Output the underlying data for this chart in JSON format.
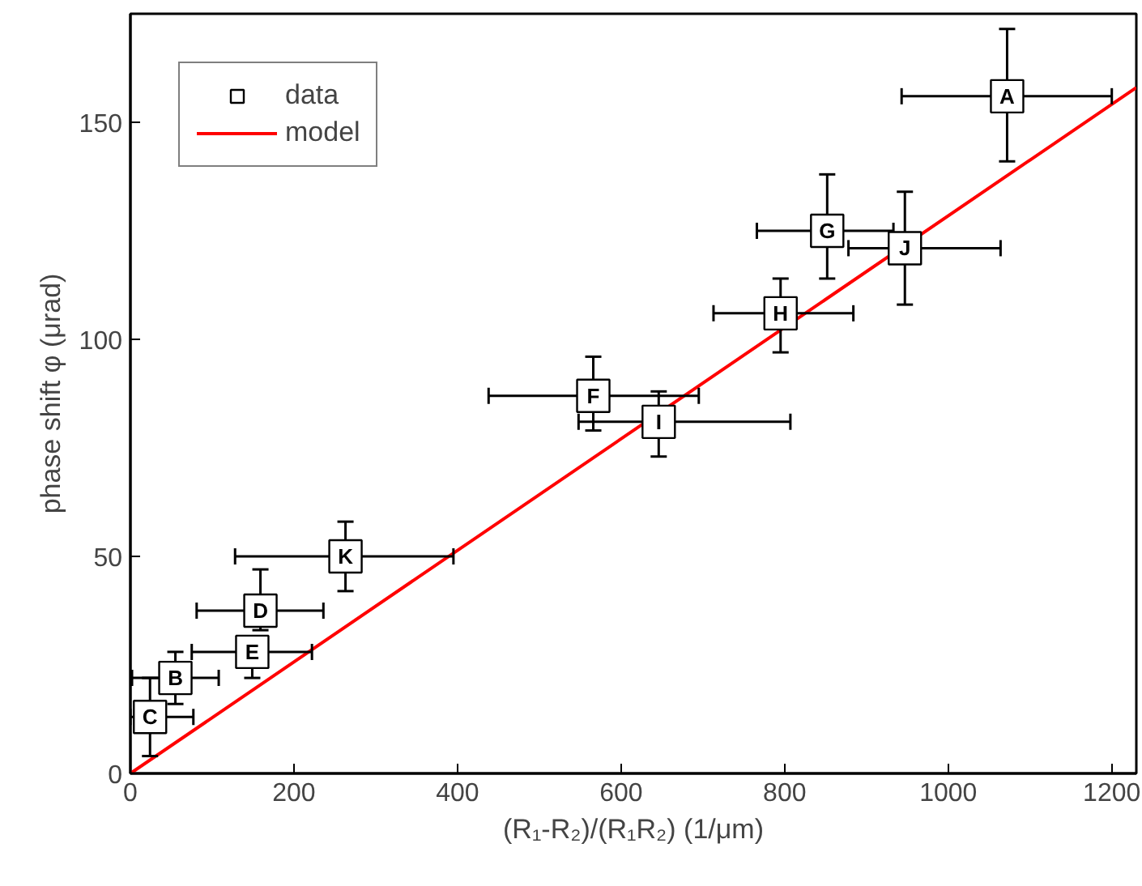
{
  "chart_data": {
    "type": "scatter",
    "xlabel": "(R₁-R₂)/(R₁R₂) (1/μm)",
    "ylabel": "phase shift φ (μrad)",
    "xlim": [
      0,
      1230
    ],
    "ylim": [
      0,
      175
    ],
    "xticks": [
      0,
      200,
      400,
      600,
      800,
      1000,
      1200
    ],
    "yticks": [
      0,
      50,
      100,
      150
    ],
    "grid": false,
    "legend": "top left",
    "series": [
      {
        "name": "data",
        "marker": "square",
        "color": "#000000",
        "x": [
          1072,
          55,
          24,
          159,
          149,
          566,
          852,
          795,
          646,
          947,
          263
        ],
        "values": [
          156,
          22,
          13,
          37.5,
          28,
          87,
          125,
          106,
          81,
          121,
          50
        ],
        "value_labels": [
          "A",
          "B",
          "C",
          "D",
          "E",
          "F",
          "G",
          "H",
          "I",
          "J",
          "K"
        ],
        "errors": [
          [
            141,
            171.5
          ],
          [
            16,
            28
          ],
          [
            4,
            22
          ],
          [
            33,
            47
          ],
          [
            22,
            31
          ],
          [
            79,
            96
          ],
          [
            114,
            138
          ],
          [
            97,
            114
          ],
          [
            73,
            88
          ],
          [
            108,
            134
          ],
          [
            42,
            58
          ]
        ],
        "xerrors": [
          [
            943,
            1200
          ],
          [
            2,
            108
          ],
          [
            0,
            77
          ],
          [
            81,
            236
          ],
          [
            75,
            222
          ],
          [
            438,
            695
          ],
          [
            766,
            933
          ],
          [
            713,
            884
          ],
          [
            548,
            807
          ],
          [
            878,
            1064
          ],
          [
            128,
            395
          ]
        ]
      },
      {
        "name": "model",
        "type": "line",
        "color": "#ff0000",
        "line_style": "solid",
        "marker": "none",
        "x": [
          0,
          1230
        ],
        "values": [
          0,
          158
        ]
      }
    ]
  }
}
